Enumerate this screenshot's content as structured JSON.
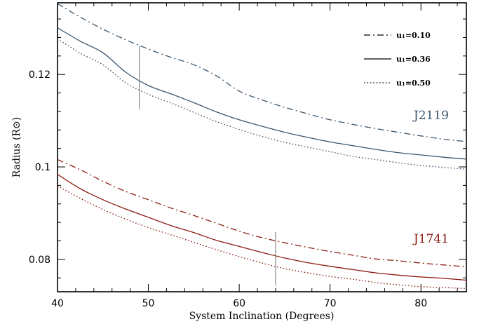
{
  "chart_data": {
    "type": "line",
    "title": "",
    "xlabel": "System Inclination (Degrees)",
    "ylabel": "Radius (R⊙)",
    "xlim": [
      40,
      85
    ],
    "ylim": [
      0.073,
      0.1355
    ],
    "x_ticks": [
      "40",
      "50",
      "60",
      "70",
      "80"
    ],
    "y_ticks": [
      "0.08",
      "0.1",
      "0.12"
    ],
    "legend": {
      "position": "top-right",
      "entries": [
        {
          "label": "u₁=0.10",
          "style": "dashdot"
        },
        {
          "label": "u₁=0.36",
          "style": "solid"
        },
        {
          "label": "u₁=0.50",
          "style": "dotted"
        }
      ]
    },
    "groups": [
      {
        "label": "J2119",
        "color": "#3d566e",
        "marker": {
          "x": 49,
          "ymin": 0.1125,
          "ymax": 0.1261
        },
        "series": [
          {
            "name": "u₁=0.10",
            "style": "dashdot",
            "x": [
              40,
              42.5,
              45,
              47.5,
              50,
              52.5,
              55,
              57.5,
              60,
              62.5,
              65,
              67.5,
              70,
              72.5,
              75,
              77.5,
              80,
              82.5,
              85
            ],
            "y": [
              0.1353,
              0.1324,
              0.1298,
              0.1275,
              0.1255,
              0.1237,
              0.1221,
              0.1197,
              0.1164,
              0.1145,
              0.1129,
              0.1115,
              0.1102,
              0.1092,
              0.1083,
              0.1075,
              0.1067,
              0.106,
              0.1055
            ]
          },
          {
            "name": "u₁=0.36",
            "style": "solid",
            "x": [
              40,
              42.5,
              45,
              47.5,
              50,
              52.5,
              55,
              57.5,
              60,
              62.5,
              65,
              67.5,
              70,
              72.5,
              75,
              77.5,
              80,
              82.5,
              85
            ],
            "y": [
              0.1301,
              0.1272,
              0.1247,
              0.1205,
              0.1176,
              0.1158,
              0.1139,
              0.1119,
              0.1102,
              0.1088,
              0.1075,
              0.1064,
              0.1054,
              0.1046,
              0.1038,
              0.1031,
              0.1026,
              0.1021,
              0.1017
            ]
          },
          {
            "name": "u₁=0.50",
            "style": "dotted",
            "x": [
              40,
              42.5,
              45,
              47.5,
              50,
              52.5,
              55,
              57.5,
              60,
              62.5,
              65,
              67.5,
              70,
              72.5,
              75,
              77.5,
              80,
              82.5,
              85
            ],
            "y": [
              0.1277,
              0.1246,
              0.1221,
              0.1182,
              0.1157,
              0.1138,
              0.1118,
              0.1098,
              0.1081,
              0.1066,
              0.1053,
              0.1043,
              0.1033,
              0.1023,
              0.1016,
              0.1009,
              0.1003,
              0.0999,
              0.0995
            ]
          }
        ]
      },
      {
        "label": "J1741",
        "color": "#8b1a10",
        "marker": {
          "x": 64,
          "ymin": 0.0744,
          "ymax": 0.0859
        },
        "series": [
          {
            "name": "u₁=0.10",
            "style": "dashdot",
            "x": [
              40,
              42.5,
              45,
              47.5,
              50,
              52.5,
              55,
              57.5,
              60,
              62.5,
              65,
              67.5,
              70,
              72.5,
              75,
              77.5,
              80,
              82.5,
              85
            ],
            "y": [
              0.1016,
              0.0994,
              0.0969,
              0.0947,
              0.0929,
              0.0911,
              0.0895,
              0.0878,
              0.0861,
              0.0847,
              0.0836,
              0.0826,
              0.0817,
              0.0809,
              0.0801,
              0.0797,
              0.0792,
              0.0788,
              0.0784
            ]
          },
          {
            "name": "u₁=0.36",
            "style": "solid",
            "x": [
              40,
              42.5,
              45,
              47.5,
              50,
              52.5,
              55,
              57.5,
              60,
              62.5,
              65,
              67.5,
              70,
              72.5,
              75,
              77.5,
              80,
              82.5,
              85
            ],
            "y": [
              0.0984,
              0.0953,
              0.0929,
              0.0909,
              0.0891,
              0.0873,
              0.0858,
              0.0841,
              0.0828,
              0.0815,
              0.0803,
              0.0793,
              0.0785,
              0.0778,
              0.0771,
              0.0766,
              0.0762,
              0.0759,
              0.0755
            ]
          },
          {
            "name": "u₁=0.50",
            "style": "dotted",
            "x": [
              40,
              42.5,
              45,
              47.5,
              50,
              52.5,
              55,
              57.5,
              60,
              62.5,
              65,
              67.5,
              70,
              72.5,
              75,
              77.5,
              80,
              82.5,
              85
            ],
            "y": [
              0.0959,
              0.0932,
              0.0908,
              0.0887,
              0.0869,
              0.0853,
              0.0837,
              0.0821,
              0.0806,
              0.0792,
              0.078,
              0.0771,
              0.0763,
              0.0757,
              0.075,
              0.0745,
              0.0741,
              0.0739,
              0.0737
            ]
          }
        ]
      }
    ]
  }
}
